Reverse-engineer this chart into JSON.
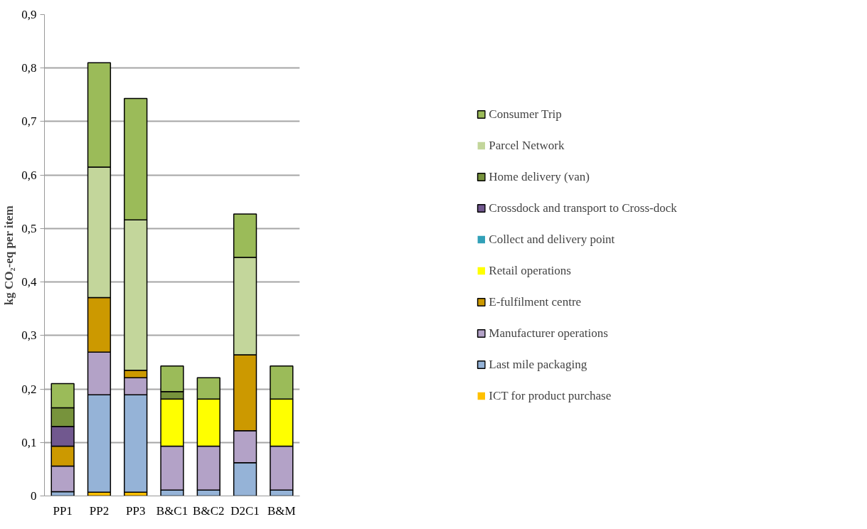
{
  "chart_data": {
    "type": "bar",
    "stacked": true,
    "ylabel": "kg CO₂-eq per item",
    "categories": [
      "PP1",
      "PP2",
      "PP3",
      "B&C1",
      "B&C2",
      "D2C1",
      "B&M"
    ],
    "series": [
      {
        "name": "ICT for product purchase",
        "color": "#ffc000",
        "values": [
          0,
          0.007,
          0.007,
          0,
          0,
          0,
          0
        ]
      },
      {
        "name": "Last mile packaging",
        "color": "#95b3d7",
        "values": [
          0.008,
          0.182,
          0.182,
          0.011,
          0.011,
          0.062,
          0.011
        ]
      },
      {
        "name": "Manufacturer operations",
        "color": "#b3a2c7",
        "values": [
          0.048,
          0.08,
          0.032,
          0.082,
          0.082,
          0.06,
          0.082
        ]
      },
      {
        "name": "E-fulfilment centre",
        "color": "#cc9900",
        "values": [
          0.037,
          0.102,
          0.014,
          0,
          0,
          0.142,
          0
        ]
      },
      {
        "name": "Retail operations",
        "color": "#ffff00",
        "values": [
          0,
          0,
          0,
          0.088,
          0.088,
          0,
          0.088
        ]
      },
      {
        "name": "Collect and delivery point",
        "color": "#31a0b8",
        "values": [
          0,
          0,
          0,
          0,
          0,
          0,
          0
        ]
      },
      {
        "name": "Crossdock and transport to Cross-dock",
        "color": "#71588f",
        "values": [
          0.037,
          0,
          0,
          0,
          0,
          0,
          0
        ]
      },
      {
        "name": "Home delivery (van)",
        "color": "#77933c",
        "values": [
          0.035,
          0,
          0,
          0.014,
          0,
          0,
          0
        ]
      },
      {
        "name": "Parcel Network",
        "color": "#c3d69b",
        "values": [
          0,
          0.244,
          0.281,
          0,
          0,
          0.182,
          0
        ]
      },
      {
        "name": "Consumer Trip",
        "color": "#9bbb59",
        "values": [
          0.045,
          0.195,
          0.227,
          0.048,
          0.04,
          0.081,
          0.062
        ]
      }
    ],
    "ylim": [
      0,
      0.9
    ],
    "yticks": [
      0,
      {
        "value": 0.1,
        "label": "0,1"
      },
      {
        "value": 0.2,
        "label": "0,2"
      },
      {
        "value": 0.3,
        "label": "0,3"
      },
      {
        "value": 0.4,
        "label": "0,4"
      },
      {
        "value": 0.5,
        "label": "0,5"
      },
      {
        "value": 0.6,
        "label": "0,6"
      },
      {
        "value": 0.7,
        "label": "0,7"
      },
      {
        "value": 0.8,
        "label": "0,8"
      },
      {
        "value": 0.9,
        "label": "0,9"
      }
    ],
    "grid": "y",
    "legend": "right"
  }
}
